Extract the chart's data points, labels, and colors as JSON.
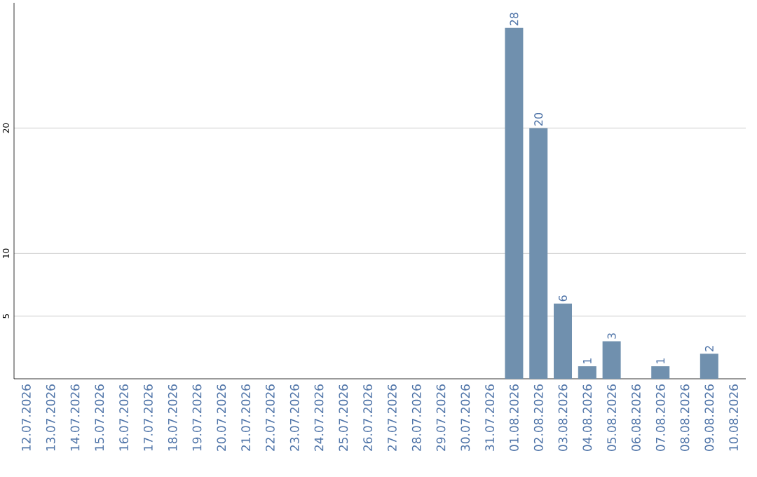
{
  "chart_data": {
    "type": "bar",
    "categories": [
      "12.07.2026",
      "13.07.2026",
      "14.07.2026",
      "15.07.2026",
      "16.07.2026",
      "17.07.2026",
      "18.07.2026",
      "19.07.2026",
      "20.07.2026",
      "21.07.2026",
      "22.07.2026",
      "23.07.2026",
      "24.07.2026",
      "25.07.2026",
      "26.07.2026",
      "27.07.2026",
      "28.07.2026",
      "29.07.2026",
      "30.07.2026",
      "31.07.2026",
      "01.08.2026",
      "02.08.2026",
      "03.08.2026",
      "04.08.2026",
      "05.08.2026",
      "06.08.2026",
      "07.08.2026",
      "08.08.2026",
      "09.08.2026",
      "10.08.2026"
    ],
    "values": [
      0,
      0,
      0,
      0,
      0,
      0,
      0,
      0,
      0,
      0,
      0,
      0,
      0,
      0,
      0,
      0,
      0,
      0,
      0,
      0,
      28,
      20,
      6,
      1,
      3,
      0,
      1,
      0,
      2,
      0
    ],
    "value_labels": [
      null,
      null,
      null,
      null,
      null,
      null,
      null,
      null,
      null,
      null,
      null,
      null,
      null,
      null,
      null,
      null,
      null,
      null,
      null,
      null,
      "28",
      "20",
      "6",
      "1",
      "3",
      null,
      "1",
      null,
      "2",
      null
    ],
    "color": "#7090ae",
    "ylim": [
      0,
      30
    ],
    "yticks": [
      5,
      10,
      20
    ],
    "grid": "y"
  }
}
